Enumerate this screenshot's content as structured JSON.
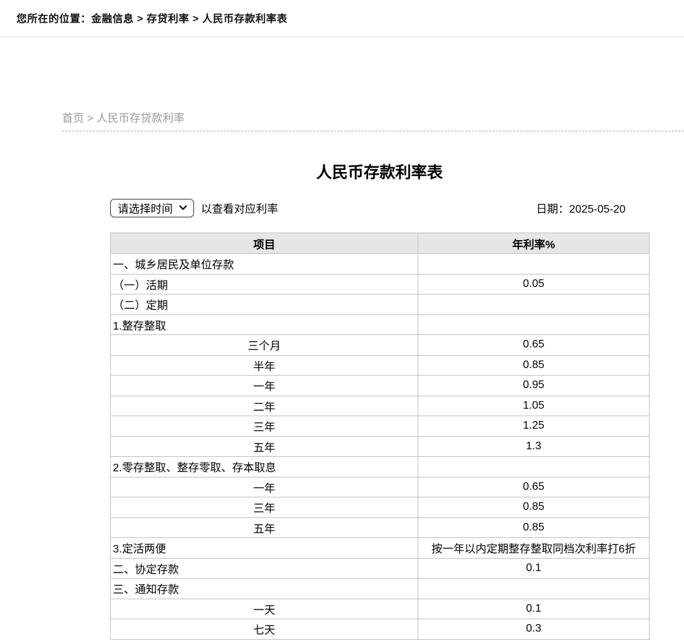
{
  "colors": {
    "header_bg": "#e6e6e6",
    "table_border": "#c3c3c3",
    "breadcrumb_gray": "#999999",
    "topbar_border": "#dddddd"
  },
  "topbar": {
    "location_label": "您所在的位置：金融信息 > 存贷利率 > 人民币存款利率表"
  },
  "breadcrumb": {
    "home": "首页",
    "separator": " > ",
    "current": "人民币存贷款利率"
  },
  "main": {
    "title": "人民币存款利率表",
    "controls": {
      "select_label": "请选择时间",
      "select_hint": "以查看对应利率",
      "date_label": "日期：2025-05-20"
    },
    "table": {
      "headers": [
        "项目",
        "年利率%"
      ],
      "rows": [
        {
          "item": "一、城乡居民及单位存款",
          "rate": "",
          "align": "left"
        },
        {
          "item": "（一）活期",
          "rate": "0.05",
          "align": "left"
        },
        {
          "item": "（二）定期",
          "rate": "",
          "align": "left"
        },
        {
          "item": "1.整存整取",
          "rate": "",
          "align": "left"
        },
        {
          "item": "三个月",
          "rate": "0.65",
          "align": "center"
        },
        {
          "item": "半年",
          "rate": "0.85",
          "align": "center"
        },
        {
          "item": "一年",
          "rate": "0.95",
          "align": "center"
        },
        {
          "item": "二年",
          "rate": "1.05",
          "align": "center"
        },
        {
          "item": "三年",
          "rate": "1.25",
          "align": "center"
        },
        {
          "item": "五年",
          "rate": "1.3",
          "align": "center"
        },
        {
          "item": "2.零存整取、整存零取、存本取息",
          "rate": "",
          "align": "left"
        },
        {
          "item": "一年",
          "rate": "0.65",
          "align": "center"
        },
        {
          "item": "三年",
          "rate": "0.85",
          "align": "center"
        },
        {
          "item": "五年",
          "rate": "0.85",
          "align": "center"
        },
        {
          "item": "3.定活两便",
          "rate": "按一年以内定期整存整取同档次利率打6折",
          "align": "left"
        },
        {
          "item": "二、协定存款",
          "rate": "0.1",
          "align": "left"
        },
        {
          "item": "三、通知存款",
          "rate": "",
          "align": "left"
        },
        {
          "item": "一天",
          "rate": "0.1",
          "align": "center"
        },
        {
          "item": "七天",
          "rate": "0.3",
          "align": "center"
        }
      ]
    }
  }
}
